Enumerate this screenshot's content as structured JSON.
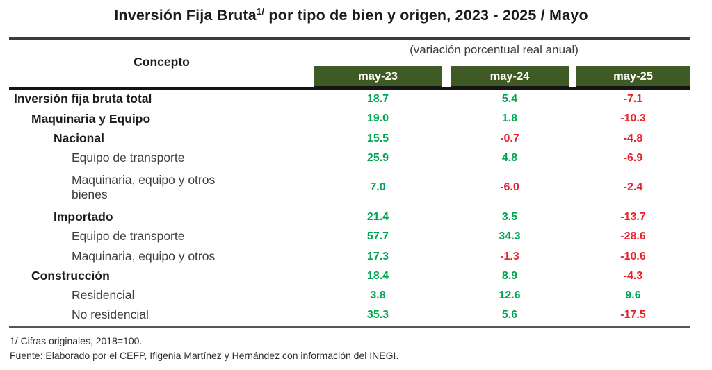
{
  "title": {
    "prefix": "Inversión Fija Bruta",
    "footnote_marker": "1/",
    "suffix": " por tipo de bien y origen, 2023 - 2025 / Mayo"
  },
  "header": {
    "concept_label": "Concepto",
    "subtitle": "(variación porcentual real anual)",
    "columns": [
      "may-23",
      "may-24",
      "may-25"
    ]
  },
  "chart_data": {
    "type": "table",
    "title": "Inversión Fija Bruta 1/ por tipo de bien y origen, 2023 - 2025 / Mayo",
    "subtitle": "(variación porcentual real anual)",
    "columns": [
      "Concepto",
      "may-23",
      "may-24",
      "may-25"
    ],
    "rows": [
      {
        "label": "Inversión fija bruta total",
        "indent": 0,
        "bold": true,
        "two_line": false,
        "values": [
          "18.7",
          "5.4",
          "-7.1"
        ]
      },
      {
        "label": "Maquinaria y Equipo",
        "indent": 1,
        "bold": true,
        "two_line": false,
        "values": [
          "19.0",
          "1.8",
          "-10.3"
        ]
      },
      {
        "label": "Nacional",
        "indent": 2,
        "bold": true,
        "two_line": false,
        "values": [
          "15.5",
          "-0.7",
          "-4.8"
        ]
      },
      {
        "label": "Equipo de transporte",
        "indent": 3,
        "bold": false,
        "two_line": false,
        "values": [
          "25.9",
          "4.8",
          "-6.9"
        ]
      },
      {
        "label": "Maquinaria, equipo y otros bienes",
        "indent": 3,
        "bold": false,
        "two_line": true,
        "values": [
          "7.0",
          "-6.0",
          "-2.4"
        ]
      },
      {
        "label": "Importado",
        "indent": 2,
        "bold": true,
        "two_line": false,
        "values": [
          "21.4",
          "3.5",
          "-13.7"
        ]
      },
      {
        "label": "Equipo de transporte",
        "indent": 3,
        "bold": false,
        "two_line": false,
        "values": [
          "57.7",
          "34.3",
          "-28.6"
        ]
      },
      {
        "label": "Maquinaria, equipo y otros",
        "indent": 3,
        "bold": false,
        "two_line": false,
        "values": [
          "17.3",
          "-1.3",
          "-10.6"
        ]
      },
      {
        "label": "Construcción",
        "indent": 1,
        "bold": true,
        "two_line": false,
        "values": [
          "18.4",
          "8.9",
          "-4.3"
        ]
      },
      {
        "label": "Residencial",
        "indent": 3,
        "bold": false,
        "two_line": false,
        "values": [
          "3.8",
          "12.6",
          "9.6"
        ]
      },
      {
        "label": "No residencial",
        "indent": 3,
        "bold": false,
        "two_line": false,
        "values": [
          "35.3",
          "5.6",
          "-17.5"
        ]
      }
    ]
  },
  "footnotes": [
    "1/ Cifras originales, 2018=100.",
    "Fuente: Elaborado por el CEFP, Ifigenia Martínez y Hernández con información del INEGI."
  ],
  "colors": {
    "positive": "#00A551",
    "negative": "#E8212A",
    "header_bar": "#405A26",
    "header_text": "#FDFDF5"
  }
}
